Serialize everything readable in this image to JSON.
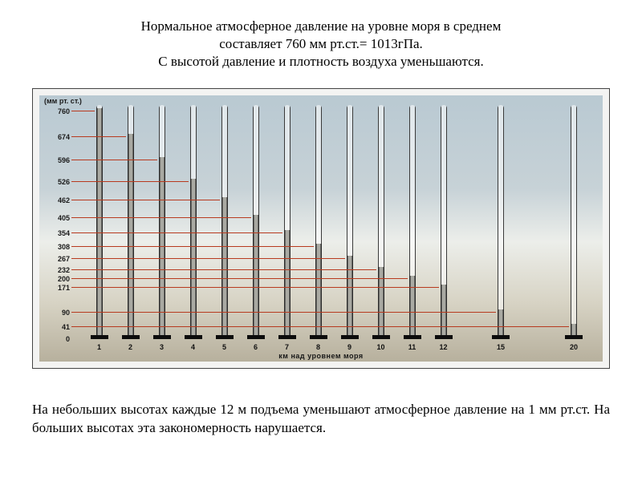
{
  "title": {
    "line1": "Нормальное атмосферное давление на уровне моря в среднем",
    "line2": "составляет 760 мм рт.ст.= 1013гПа.",
    "line3": "С высотой давление и плотность воздуха уменьшаются.",
    "fontsize": 17,
    "color": "#000000"
  },
  "bottom_note": {
    "text": "На небольших высотах каждые 12 м подъема уменьшают атмосферное давление на 1 мм рт.ст. На больших высотах эта закономерность нарушается.",
    "fontsize": 17,
    "color": "#000000"
  },
  "chart": {
    "type": "bar",
    "y_unit_label": "(мм рт. ст.)",
    "x_axis_title": "км над уровнем моря",
    "ylim": [
      0,
      770
    ],
    "tube_top_value": 770,
    "background_gradient": [
      "#b9c9d2",
      "#c7d2d7",
      "#eceeea",
      "#d7d3c4",
      "#b7b09d"
    ],
    "tick_line_color": "#b83a1f",
    "bar_fill_colors": [
      "#2a2a2a",
      "#a9a9a2"
    ],
    "tube_colors": [
      "#3a3a3a",
      "rgba(255,255,255,0.55)"
    ],
    "base_color": "#0c0c0c",
    "label_fontsize": 9,
    "label_color": "#1a1a1a",
    "y_ticks": [
      {
        "y": 760,
        "label": "760",
        "point_to_bar": 0
      },
      {
        "y": 674,
        "label": "674",
        "point_to_bar": 1
      },
      {
        "y": 596,
        "label": "596",
        "point_to_bar": 2
      },
      {
        "y": 526,
        "label": "526",
        "point_to_bar": 3
      },
      {
        "y": 462,
        "label": "462",
        "point_to_bar": 4
      },
      {
        "y": 405,
        "label": "405",
        "point_to_bar": 5
      },
      {
        "y": 354,
        "label": "354",
        "point_to_bar": 6
      },
      {
        "y": 308,
        "label": "308",
        "point_to_bar": 7
      },
      {
        "y": 267,
        "label": "267",
        "point_to_bar": 8
      },
      {
        "y": 232,
        "label": "232",
        "point_to_bar": 9
      },
      {
        "y": 200,
        "label": "200",
        "point_to_bar": 10
      },
      {
        "y": 171,
        "label": "171",
        "point_to_bar": 11
      },
      {
        "y": 90,
        "label": "90",
        "point_to_bar": 12
      },
      {
        "y": 41,
        "label": "41",
        "point_to_bar": 13
      },
      {
        "y": 0,
        "label": "0",
        "point_to_bar": 0
      }
    ],
    "bars": [
      {
        "x_label": "1",
        "value": 760
      },
      {
        "x_label": "2",
        "value": 674
      },
      {
        "x_label": "3",
        "value": 596
      },
      {
        "x_label": "4",
        "value": 526
      },
      {
        "x_label": "5",
        "value": 462
      },
      {
        "x_label": "6",
        "value": 405
      },
      {
        "x_label": "7",
        "value": 354
      },
      {
        "x_label": "8",
        "value": 308
      },
      {
        "x_label": "9",
        "value": 267
      },
      {
        "x_label": "10",
        "value": 232
      },
      {
        "x_label": "11",
        "value": 200
      },
      {
        "x_label": "12",
        "value": 171
      },
      {
        "x_label": "15",
        "value": 90
      },
      {
        "x_label": "20",
        "value": 41
      }
    ],
    "x_positions_pct": [
      5,
      11,
      17,
      23,
      29,
      35,
      41,
      47,
      53,
      59,
      65,
      71,
      82,
      96
    ]
  }
}
